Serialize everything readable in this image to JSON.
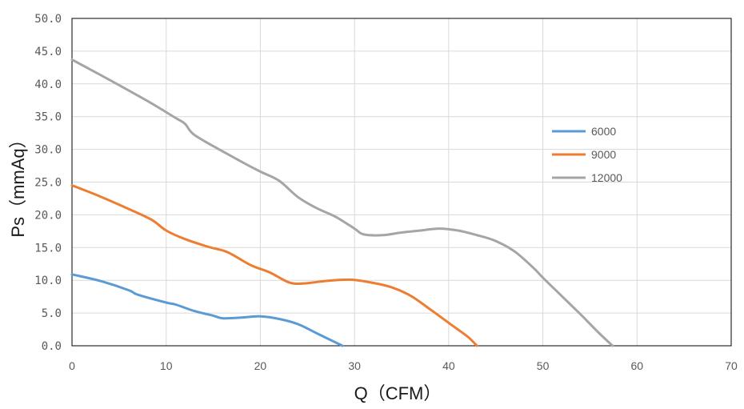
{
  "chart_data": {
    "type": "line",
    "xlabel": "Q（CFM）",
    "ylabel": "Ps（mmAq）",
    "xlim": [
      0,
      70
    ],
    "ylim": [
      0,
      50
    ],
    "x_ticks": [
      "0",
      "10",
      "20",
      "30",
      "40",
      "50",
      "60",
      "70"
    ],
    "y_ticks": [
      "0.0",
      "5.0",
      "10.0",
      "15.0",
      "20.0",
      "25.0",
      "30.0",
      "35.0",
      "40.0",
      "45.0",
      "50.0"
    ],
    "grid": true,
    "legend_position": "right",
    "series": [
      {
        "name": "6000",
        "color": "#5B9BD5",
        "points": [
          [
            0,
            10.9
          ],
          [
            3,
            9.9
          ],
          [
            6,
            8.5
          ],
          [
            7,
            7.8
          ],
          [
            10,
            6.6
          ],
          [
            11,
            6.3
          ],
          [
            13,
            5.3
          ],
          [
            15,
            4.6
          ],
          [
            16,
            4.2
          ],
          [
            18,
            4.3
          ],
          [
            20,
            4.5
          ],
          [
            22,
            4.1
          ],
          [
            24,
            3.3
          ],
          [
            26,
            1.9
          ],
          [
            28,
            0.5
          ],
          [
            28.7,
            0.0
          ]
        ]
      },
      {
        "name": "9000",
        "color": "#ED7D31",
        "points": [
          [
            0,
            24.5
          ],
          [
            3,
            22.8
          ],
          [
            6,
            20.9
          ],
          [
            8.5,
            19.2
          ],
          [
            10,
            17.6
          ],
          [
            12,
            16.3
          ],
          [
            14.5,
            15.1
          ],
          [
            16.5,
            14.3
          ],
          [
            19,
            12.3
          ],
          [
            21,
            11.2
          ],
          [
            23,
            9.7
          ],
          [
            24.5,
            9.5
          ],
          [
            27,
            9.9
          ],
          [
            29.5,
            10.1
          ],
          [
            32,
            9.6
          ],
          [
            34,
            8.9
          ],
          [
            36,
            7.6
          ],
          [
            38,
            5.6
          ],
          [
            40,
            3.5
          ],
          [
            42,
            1.4
          ],
          [
            43,
            0.0
          ]
        ]
      },
      {
        "name": "12000",
        "color": "#A5A5A5",
        "points": [
          [
            0,
            43.7
          ],
          [
            4,
            40.6
          ],
          [
            8,
            37.4
          ],
          [
            11,
            34.8
          ],
          [
            12,
            33.9
          ],
          [
            13,
            32.2
          ],
          [
            16,
            29.7
          ],
          [
            18,
            28.1
          ],
          [
            20,
            26.6
          ],
          [
            22,
            25.2
          ],
          [
            24,
            22.7
          ],
          [
            26,
            21.0
          ],
          [
            28,
            19.7
          ],
          [
            30,
            17.9
          ],
          [
            31,
            17.0
          ],
          [
            33,
            16.9
          ],
          [
            35,
            17.3
          ],
          [
            37,
            17.6
          ],
          [
            39,
            17.9
          ],
          [
            41,
            17.6
          ],
          [
            43,
            16.9
          ],
          [
            45,
            16.0
          ],
          [
            47,
            14.4
          ],
          [
            49,
            11.9
          ],
          [
            50,
            10.4
          ],
          [
            52,
            7.6
          ],
          [
            54,
            4.8
          ],
          [
            56,
            1.9
          ],
          [
            57.4,
            0.0
          ]
        ]
      }
    ]
  }
}
